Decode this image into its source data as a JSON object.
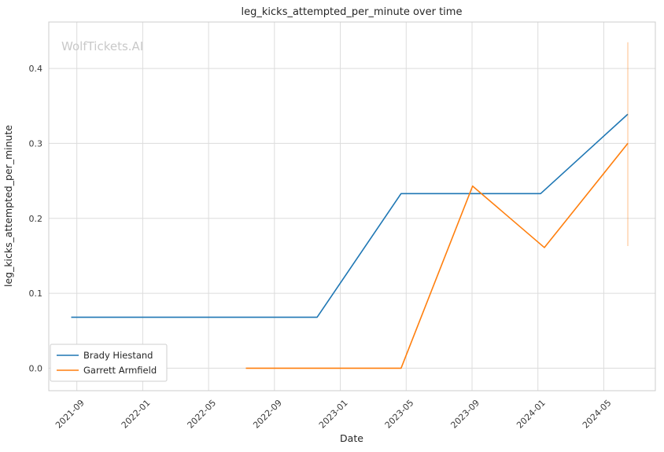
{
  "watermark": "WolfTickets.AI",
  "chart_data": {
    "type": "line",
    "title": "leg_kicks_attempted_per_minute over time",
    "xlabel": "Date",
    "ylabel": "leg_kicks_attempted_per_minute",
    "x_tick_labels": [
      "2021-09",
      "2022-01",
      "2022-05",
      "2022-09",
      "2023-01",
      "2023-05",
      "2023-09",
      "2024-01",
      "2024-05"
    ],
    "y_ticks": [
      0.0,
      0.1,
      0.2,
      0.3,
      0.4
    ],
    "xlim": [
      "2021-07-10",
      "2024-08-05"
    ],
    "ylim": [
      -0.03,
      0.462
    ],
    "grid": true,
    "grid_color": "#dcdcdc",
    "axis_color": "#cccccc",
    "legend_position": "lower left",
    "series": [
      {
        "name": "Brady Hiestand",
        "color": "#1f77b4",
        "points": [
          {
            "x": "2021-08-21",
            "y": 0.068
          },
          {
            "x": "2022-11-19",
            "y": 0.068
          },
          {
            "x": "2023-04-22",
            "y": 0.233
          },
          {
            "x": "2024-01-06",
            "y": 0.233
          },
          {
            "x": "2024-06-15",
            "y": 0.339
          }
        ]
      },
      {
        "name": "Garrett Armfield",
        "color": "#ff7f0e",
        "points": [
          {
            "x": "2022-07-09",
            "y": 0.0
          },
          {
            "x": "2023-04-22",
            "y": 0.0
          },
          {
            "x": "2023-09-02",
            "y": 0.243
          },
          {
            "x": "2024-01-13",
            "y": 0.161
          },
          {
            "x": "2024-06-15",
            "y": 0.3
          }
        ],
        "error_bar": {
          "x": "2024-06-15",
          "y_low": 0.163,
          "y_high": 0.435
        }
      }
    ]
  }
}
